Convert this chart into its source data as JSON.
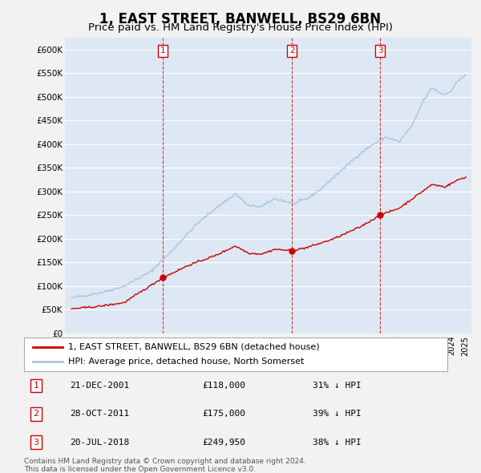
{
  "title": "1, EAST STREET, BANWELL, BS29 6BN",
  "subtitle": "Price paid vs. HM Land Registry's House Price Index (HPI)",
  "title_fontsize": 12,
  "subtitle_fontsize": 9.5,
  "ylabel_ticks": [
    "£0",
    "£50K",
    "£100K",
    "£150K",
    "£200K",
    "£250K",
    "£300K",
    "£350K",
    "£400K",
    "£450K",
    "£500K",
    "£550K",
    "£600K"
  ],
  "ytick_values": [
    0,
    50000,
    100000,
    150000,
    200000,
    250000,
    300000,
    350000,
    400000,
    450000,
    500000,
    550000,
    600000
  ],
  "ylim": [
    0,
    625000
  ],
  "xlim_start": 1994.5,
  "xlim_end": 2025.5,
  "hpi_color": "#aac4e0",
  "price_color": "#cc0000",
  "plot_bg": "#dde8f4",
  "grid_color": "#ffffff",
  "transactions": [
    {
      "num": 1,
      "date": "21-DEC-2001",
      "year": 2001.97,
      "price": 118000,
      "label": "1"
    },
    {
      "num": 2,
      "date": "28-OCT-2011",
      "year": 2011.82,
      "price": 175000,
      "label": "2"
    },
    {
      "num": 3,
      "date": "20-JUL-2018",
      "year": 2018.55,
      "price": 249950,
      "label": "3"
    }
  ],
  "legend_entries": [
    {
      "label": "1, EAST STREET, BANWELL, BS29 6BN (detached house)",
      "color": "#cc0000"
    },
    {
      "label": "HPI: Average price, detached house, North Somerset",
      "color": "#aac4e0"
    }
  ],
  "footer": "Contains HM Land Registry data © Crown copyright and database right 2024.\nThis data is licensed under the Open Government Licence v3.0.",
  "table_rows": [
    {
      "num": "1",
      "date": "21-DEC-2001",
      "price": "£118,000",
      "pct": "31% ↓ HPI"
    },
    {
      "num": "2",
      "date": "28-OCT-2011",
      "price": "£175,000",
      "pct": "39% ↓ HPI"
    },
    {
      "num": "3",
      "date": "20-JUL-2018",
      "price": "£249,950",
      "pct": "38% ↓ HPI"
    }
  ]
}
